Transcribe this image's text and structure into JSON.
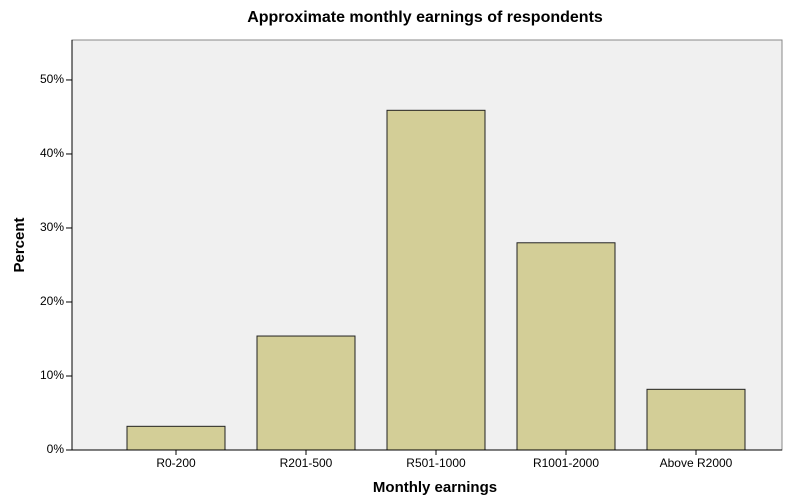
{
  "chart_data": {
    "type": "bar",
    "title": "Approximate monthly earnings of respondents",
    "x_label": "Monthly earnings",
    "y_label": "Percent",
    "categories": [
      "R0-200",
      "R201-500",
      "R501-1000",
      "R1001-2000",
      "Above R2000"
    ],
    "values": [
      3.2,
      15.4,
      45.9,
      28.0,
      8.2
    ],
    "color": "#d3ce97",
    "ylim": [
      0,
      55.4
    ],
    "yticks": [
      {
        "value": 0,
        "label": "0%"
      },
      {
        "value": 10,
        "label": "10%"
      },
      {
        "value": 20,
        "label": "20%"
      },
      {
        "value": 30,
        "label": "30%"
      },
      {
        "value": 40,
        "label": "40%"
      },
      {
        "value": 50,
        "label": "50%"
      }
    ]
  }
}
